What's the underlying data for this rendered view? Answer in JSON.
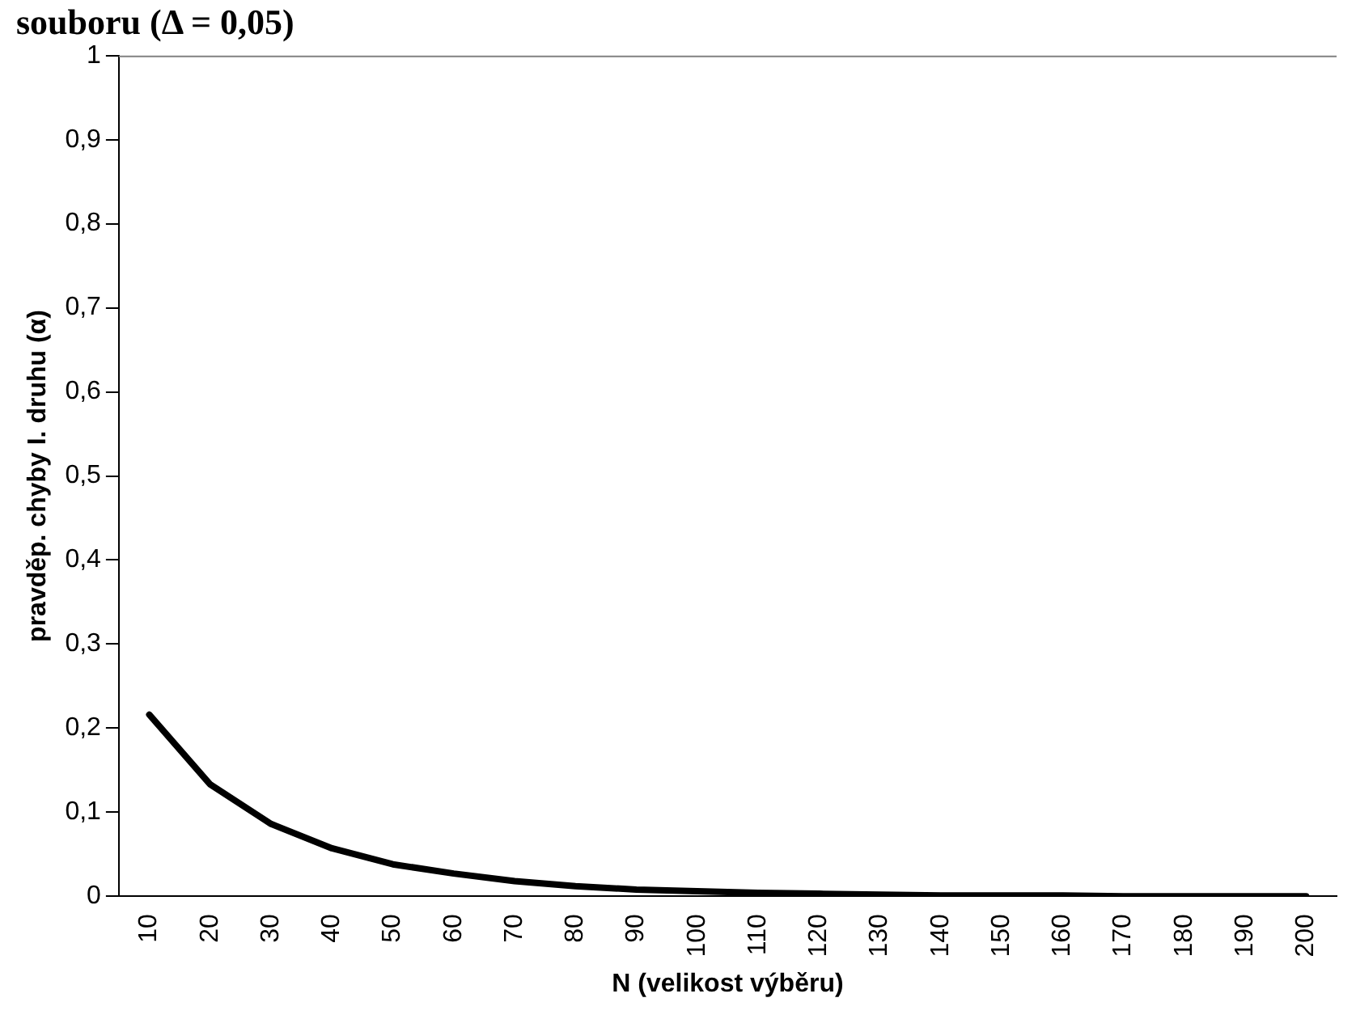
{
  "chart_data": {
    "type": "line",
    "title": "souboru (Δ = 0,05)",
    "xlabel": "N (velikost výběru)",
    "ylabel": "pravděp. chyby I. druhu (α)",
    "categories": [
      "10",
      "20",
      "30",
      "40",
      "50",
      "60",
      "70",
      "80",
      "90",
      "100",
      "110",
      "120",
      "130",
      "140",
      "150",
      "160",
      "170",
      "180",
      "190",
      "200"
    ],
    "series": [
      {
        "color": "#000000",
        "values": [
          0.216,
          0.133,
          0.086,
          0.057,
          0.038,
          0.027,
          0.018,
          0.012,
          0.008,
          0.006,
          0.004,
          0.003,
          0.002,
          0.001,
          0.001,
          0.001,
          0,
          0,
          0,
          0
        ]
      }
    ],
    "ylim": [
      0,
      1
    ],
    "yticks": [
      0,
      {
        "value": 0.1,
        "label": "0,1"
      },
      {
        "value": 0.2,
        "label": "0,2"
      },
      {
        "value": 0.3,
        "label": "0,3"
      },
      {
        "value": 0.4,
        "label": "0,4"
      },
      {
        "value": 0.5,
        "label": "0,5"
      },
      {
        "value": 0.6,
        "label": "0,6"
      },
      {
        "value": 0.7,
        "label": "0,7"
      },
      {
        "value": 0.8,
        "label": "0,8"
      },
      {
        "value": 0.9,
        "label": "0,9"
      },
      1
    ],
    "grid": false,
    "legend": false,
    "marker": "none",
    "line_style": "solid"
  }
}
